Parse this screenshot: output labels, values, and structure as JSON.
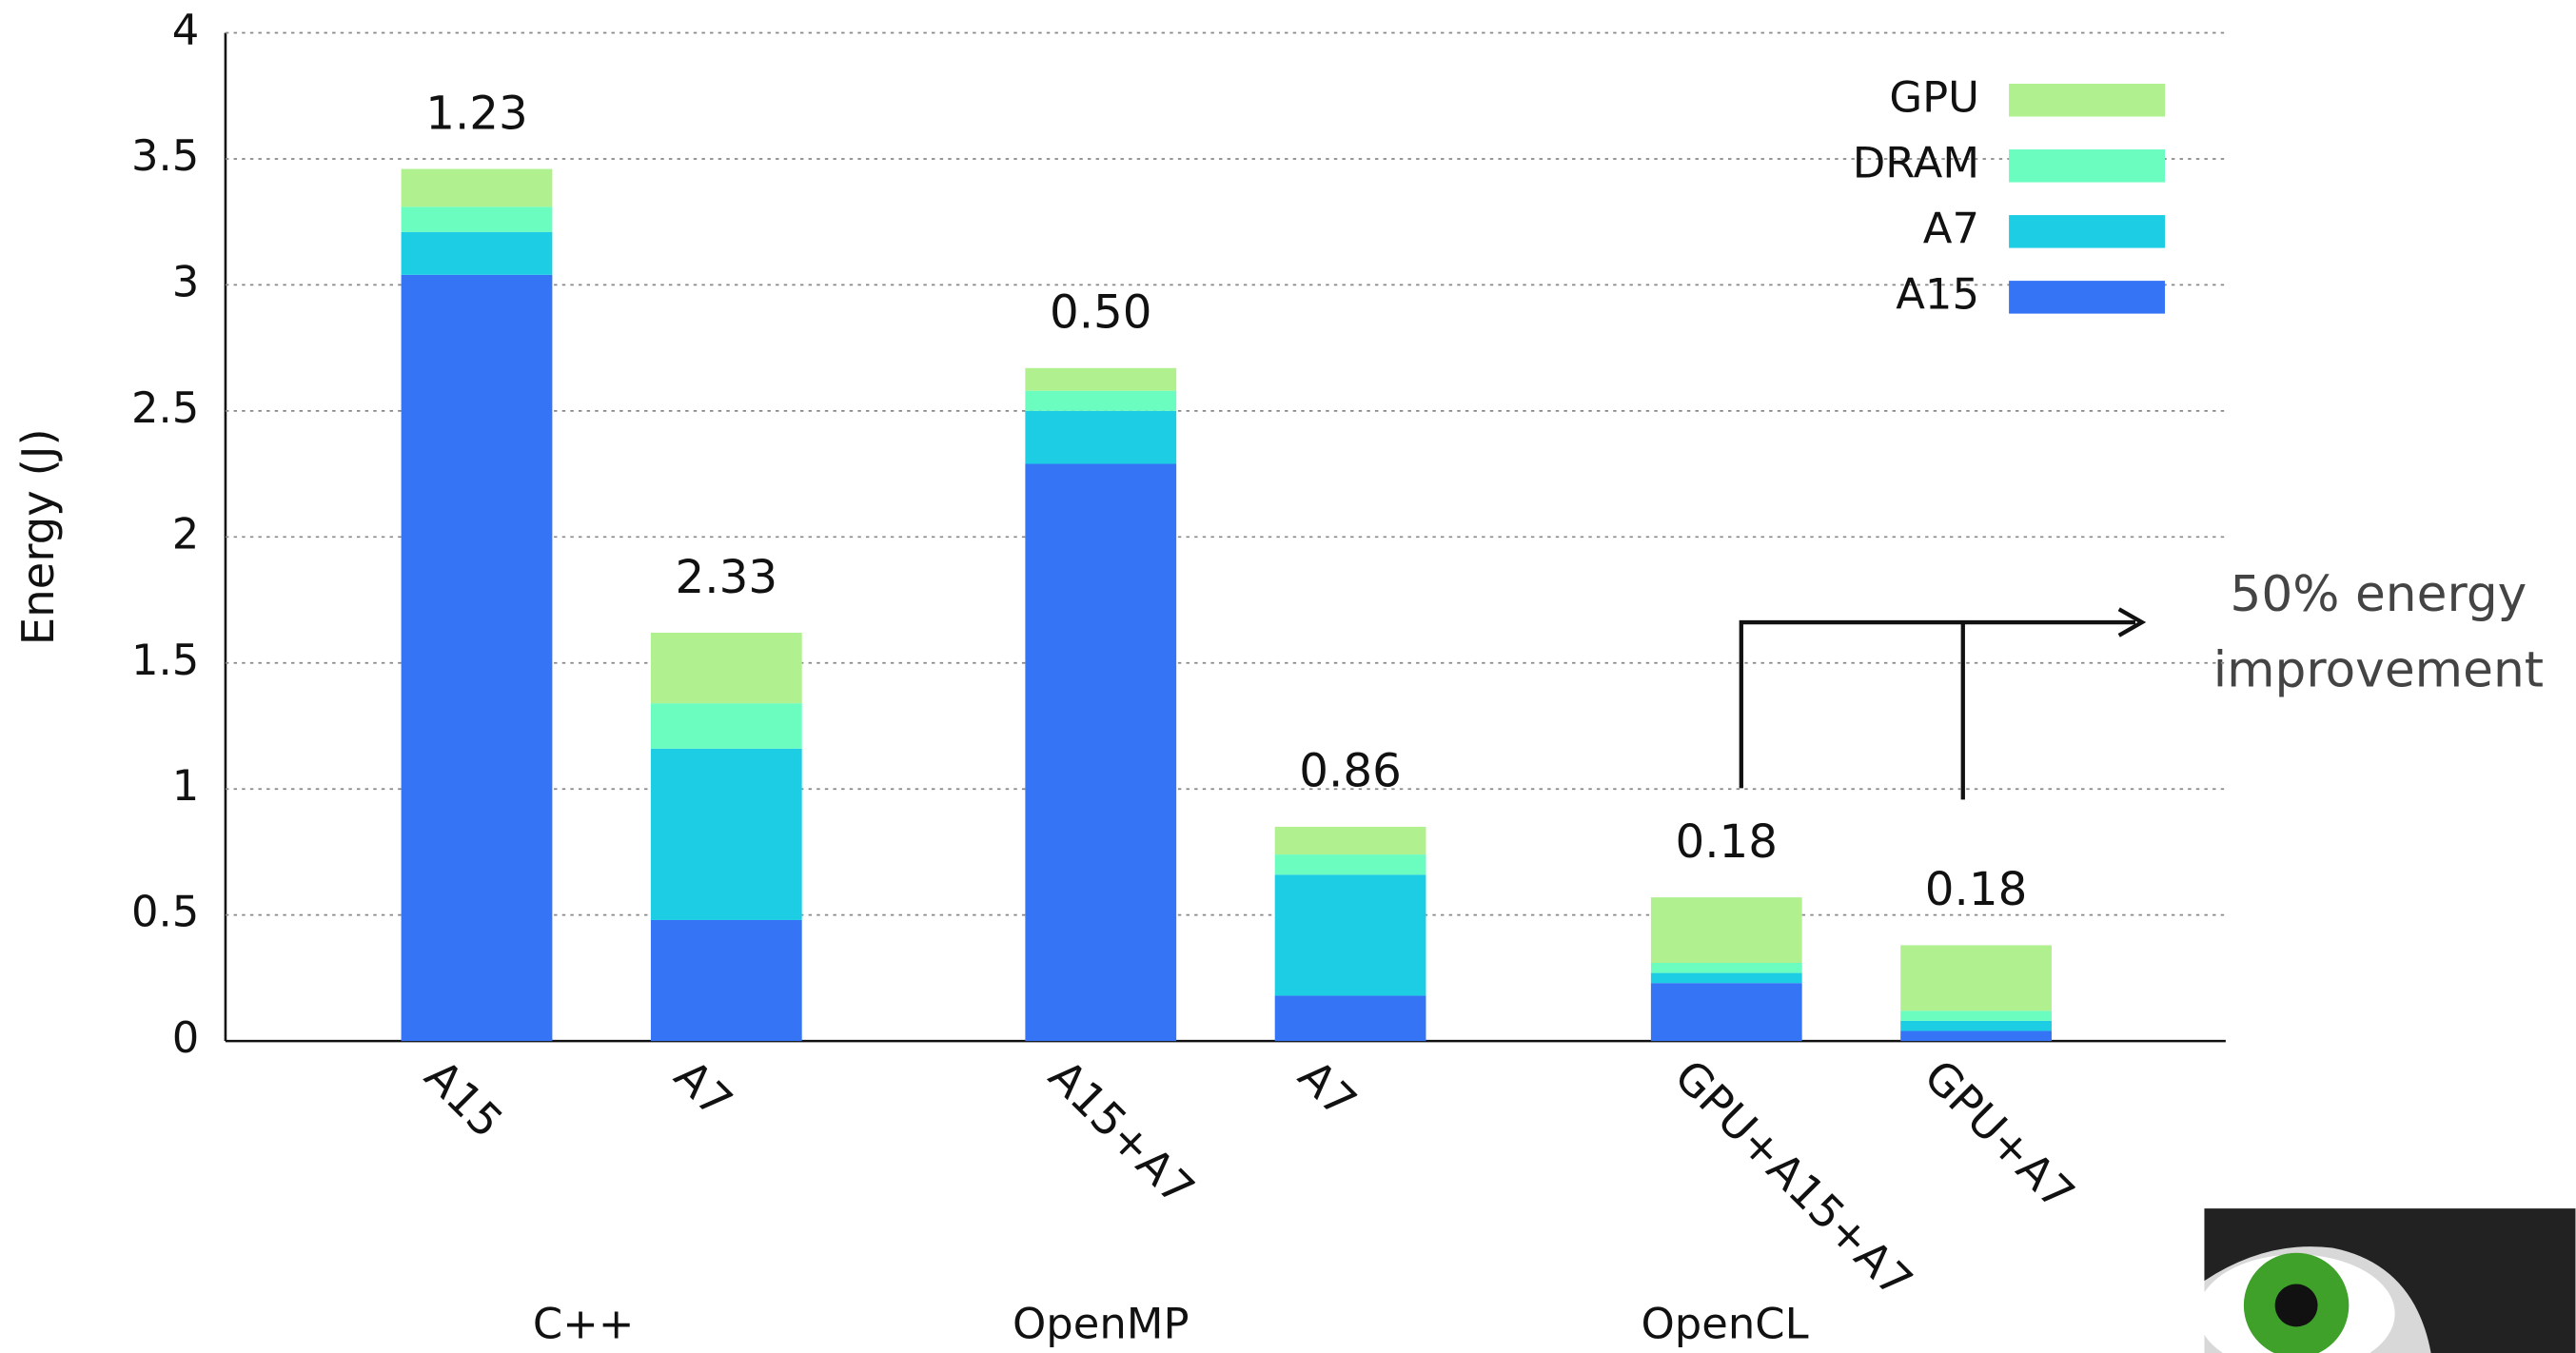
{
  "chart_data": {
    "type": "stacked-bar",
    "ylabel": "Energy (J)",
    "categories": [
      "A15",
      "A7",
      "A15+A7",
      "A7",
      "GPU+A15+A7",
      "GPU+A7"
    ],
    "groups": [
      "C++",
      "OpenMP",
      "OpenCL"
    ],
    "series": [
      {
        "name": "A15",
        "color": "#3575f5",
        "values": [
          3.04,
          0.48,
          2.29,
          0.18,
          0.23,
          0.04
        ]
      },
      {
        "name": "A7",
        "color": "#1ccde4",
        "values": [
          0.17,
          0.68,
          0.21,
          0.48,
          0.04,
          0.04
        ]
      },
      {
        "name": "DRAM",
        "color": "#6bfcc0",
        "values": [
          0.1,
          0.18,
          0.08,
          0.08,
          0.04,
          0.04
        ]
      },
      {
        "name": "GPU",
        "color": "#b0f08f",
        "values": [
          0.15,
          0.28,
          0.09,
          0.11,
          0.26,
          0.26
        ]
      }
    ],
    "top_labels": [
      1.23,
      2.33,
      {
        "value": 0.5,
        "label": "0.50"
      },
      0.86,
      0.18,
      0.18
    ],
    "ylim": [
      0,
      4
    ],
    "yticks": [
      0,
      0.5,
      1,
      1.5,
      2,
      2.5,
      3,
      3.5,
      4
    ],
    "grid": true,
    "legend": "upper-right",
    "annotation": [
      "50% energy",
      "improvement"
    ]
  }
}
